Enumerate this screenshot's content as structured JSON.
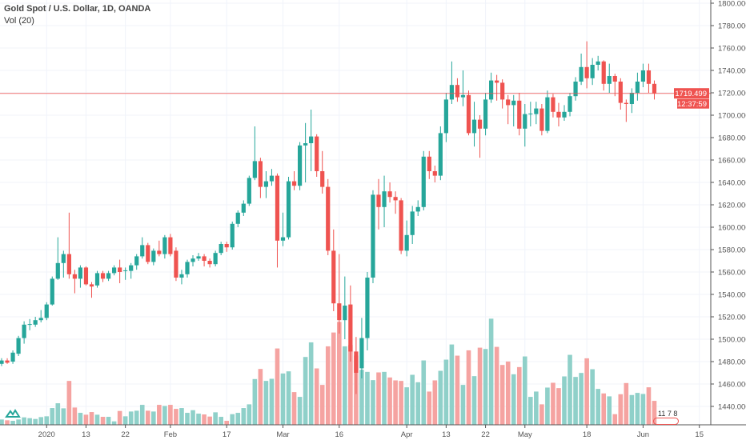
{
  "legend": {
    "title": "Gold Spot / U.S. Dollar, 1D, OANDA",
    "volume_label": "Vol (20)"
  },
  "price_label": {
    "value": "1719.499",
    "countdown": "12:37:59"
  },
  "events": {
    "labels": "11 7 8"
  },
  "colors": {
    "up": "#26a69a",
    "down": "#ef5350",
    "vol_up": "#8fd0c9",
    "vol_down": "#f5a3a1",
    "grid": "#f0f3fa",
    "price_line": "#ef5350"
  },
  "chart_data": {
    "type": "candlestick",
    "title": "Gold Spot / U.S. Dollar, 1D, OANDA",
    "ylim": [
      1430,
      1805
    ],
    "y_ticks": [
      "1800.000",
      "1780.000",
      "1760.000",
      "1740.000",
      "1720.000",
      "1700.000",
      "1680.000",
      "1660.000",
      "1640.000",
      "1620.000",
      "1600.000",
      "1580.000",
      "1560.000",
      "1540.000",
      "1520.000",
      "1500.000",
      "1480.000",
      "1460.000",
      "1440.000"
    ],
    "x_ticks": [
      {
        "label": "2020",
        "index": 8
      },
      {
        "label": "13",
        "index": 15
      },
      {
        "label": "22",
        "index": 22
      },
      {
        "label": "Feb",
        "index": 30
      },
      {
        "label": "17",
        "index": 40
      },
      {
        "label": "Mar",
        "index": 50
      },
      {
        "label": "16",
        "index": 60
      },
      {
        "label": "Apr",
        "index": 72
      },
      {
        "label": "13",
        "index": 79
      },
      {
        "label": "22",
        "index": 86
      },
      {
        "label": "May",
        "index": 93
      },
      {
        "label": "18",
        "index": 104
      },
      {
        "label": "Jun",
        "index": 114
      },
      {
        "label": "15",
        "index": 124
      }
    ],
    "ohlc_fields": [
      "open",
      "high",
      "low",
      "close"
    ],
    "ohlc": [
      [
        1478,
        1483,
        1476,
        1481
      ],
      [
        1481,
        1483,
        1478,
        1479
      ],
      [
        1480,
        1490,
        1478,
        1488
      ],
      [
        1487,
        1503,
        1485,
        1501
      ],
      [
        1501,
        1516,
        1496,
        1513
      ],
      [
        1513,
        1518,
        1508,
        1513.5
      ],
      [
        1513,
        1520,
        1511,
        1517
      ],
      [
        1517,
        1526,
        1515,
        1519
      ],
      [
        1519,
        1533,
        1517,
        1531
      ],
      [
        1531,
        1556,
        1530,
        1554
      ],
      [
        1554,
        1591,
        1553,
        1568
      ],
      [
        1568,
        1579,
        1555,
        1576
      ],
      [
        1576,
        1613,
        1554,
        1558
      ],
      [
        1558,
        1562,
        1541,
        1554
      ],
      [
        1554,
        1566,
        1546,
        1564
      ],
      [
        1564,
        1565,
        1548,
        1549
      ],
      [
        1549,
        1551,
        1537,
        1547
      ],
      [
        1548,
        1561,
        1546,
        1559
      ],
      [
        1559,
        1561,
        1551,
        1554
      ],
      [
        1554,
        1561,
        1552,
        1559
      ],
      [
        1559,
        1566,
        1557,
        1564
      ],
      [
        1564,
        1571,
        1550,
        1560
      ],
      [
        1561,
        1564,
        1553,
        1561.5
      ],
      [
        1561,
        1568,
        1554,
        1566
      ],
      [
        1566,
        1576,
        1562,
        1574
      ],
      [
        1574,
        1591,
        1572,
        1584
      ],
      [
        1584,
        1586,
        1567,
        1569
      ],
      [
        1569,
        1581,
        1566,
        1579
      ],
      [
        1579,
        1588,
        1574,
        1576
      ],
      [
        1576,
        1593,
        1572,
        1591
      ],
      [
        1591,
        1594,
        1574,
        1576
      ],
      [
        1579,
        1582,
        1552,
        1555
      ],
      [
        1555,
        1562,
        1549,
        1558
      ],
      [
        1558,
        1571,
        1555,
        1569
      ],
      [
        1569,
        1575,
        1565,
        1572
      ],
      [
        1572,
        1577,
        1570,
        1574
      ],
      [
        1574,
        1576,
        1565,
        1570
      ],
      [
        1570,
        1572,
        1564,
        1567
      ],
      [
        1567,
        1579,
        1565,
        1577
      ],
      [
        1577,
        1587,
        1575,
        1585
      ],
      [
        1585,
        1587,
        1578,
        1582
      ],
      [
        1582,
        1605,
        1580,
        1603
      ],
      [
        1603,
        1615,
        1600,
        1613
      ],
      [
        1613,
        1624,
        1610,
        1621
      ],
      [
        1621,
        1646,
        1619,
        1644
      ],
      [
        1644,
        1690,
        1642,
        1659
      ],
      [
        1659,
        1662,
        1626,
        1636
      ],
      [
        1636,
        1650,
        1626,
        1641
      ],
      [
        1641,
        1652,
        1637,
        1646
      ],
      [
        1646,
        1648,
        1564,
        1588
      ],
      [
        1588,
        1613,
        1583,
        1591
      ],
      [
        1591,
        1645,
        1589,
        1641
      ],
      [
        1641,
        1650,
        1633,
        1637
      ],
      [
        1637,
        1676,
        1633,
        1673
      ],
      [
        1673,
        1693,
        1640,
        1675
      ],
      [
        1675,
        1705,
        1650,
        1681
      ],
      [
        1681,
        1683,
        1645,
        1650
      ],
      [
        1650,
        1668,
        1630,
        1636
      ],
      [
        1636,
        1643,
        1575,
        1579
      ],
      [
        1579,
        1598,
        1525,
        1532
      ],
      [
        1532,
        1576,
        1505,
        1517
      ],
      [
        1517,
        1556,
        1500,
        1530
      ],
      [
        1531,
        1548,
        1480,
        1489
      ],
      [
        1489,
        1502,
        1451,
        1470
      ],
      [
        1474,
        1519,
        1465,
        1501
      ],
      [
        1501,
        1560,
        1490,
        1555
      ],
      [
        1555,
        1633,
        1550,
        1629
      ],
      [
        1629,
        1643,
        1598,
        1618
      ],
      [
        1618,
        1646,
        1600,
        1632
      ],
      [
        1632,
        1640,
        1622,
        1627
      ],
      [
        1627,
        1632,
        1612,
        1624
      ],
      [
        1624,
        1626,
        1576,
        1579
      ],
      [
        1579,
        1606,
        1574,
        1593
      ],
      [
        1593,
        1619,
        1585,
        1614
      ],
      [
        1614,
        1624,
        1610,
        1618
      ],
      [
        1618,
        1668,
        1615,
        1663
      ],
      [
        1663,
        1668,
        1643,
        1650
      ],
      [
        1650,
        1655,
        1640,
        1646
      ],
      [
        1646,
        1690,
        1642,
        1684
      ],
      [
        1684,
        1720,
        1676,
        1714
      ],
      [
        1714,
        1748,
        1710,
        1727
      ],
      [
        1727,
        1733,
        1712,
        1716
      ],
      [
        1716,
        1740,
        1708,
        1718
      ],
      [
        1718,
        1722,
        1682,
        1684
      ],
      [
        1684,
        1712,
        1672,
        1696
      ],
      [
        1696,
        1700,
        1662,
        1688
      ],
      [
        1688,
        1720,
        1682,
        1714
      ],
      [
        1714,
        1738,
        1711,
        1731
      ],
      [
        1731,
        1736,
        1713,
        1729
      ],
      [
        1729,
        1732,
        1706,
        1714
      ],
      [
        1714,
        1718,
        1692,
        1709
      ],
      [
        1709,
        1718,
        1690,
        1713
      ],
      [
        1713,
        1720,
        1682,
        1688
      ],
      [
        1688,
        1710,
        1672,
        1701
      ],
      [
        1701,
        1712,
        1690,
        1701.5
      ],
      [
        1701,
        1712,
        1692,
        1706
      ],
      [
        1706,
        1710,
        1682,
        1686
      ],
      [
        1686,
        1722,
        1684,
        1716
      ],
      [
        1716,
        1719,
        1698,
        1703
      ],
      [
        1703,
        1711,
        1690,
        1698
      ],
      [
        1698,
        1709,
        1695,
        1703
      ],
      [
        1703,
        1720,
        1699,
        1717
      ],
      [
        1717,
        1734,
        1713,
        1730
      ],
      [
        1730,
        1755,
        1727,
        1743
      ],
      [
        1743,
        1766,
        1724,
        1733
      ],
      [
        1733,
        1751,
        1727,
        1745
      ],
      [
        1745,
        1753,
        1740,
        1748
      ],
      [
        1748,
        1749,
        1722,
        1728
      ],
      [
        1728,
        1746,
        1720,
        1735
      ],
      [
        1735,
        1737,
        1717,
        1730
      ],
      [
        1730,
        1733,
        1705,
        1711
      ],
      [
        1711,
        1714,
        1694,
        1710
      ],
      [
        1710,
        1724,
        1702,
        1720
      ],
      [
        1720,
        1738,
        1713,
        1730
      ],
      [
        1730,
        1746,
        1725,
        1740
      ],
      [
        1740,
        1746,
        1720,
        1728
      ],
      [
        1728,
        1731,
        1714,
        1719.499
      ]
    ],
    "volume": [
      20,
      17,
      15,
      20,
      28,
      25,
      22,
      29,
      32,
      63,
      81,
      62,
      165,
      65,
      45,
      38,
      48,
      38,
      30,
      30,
      13,
      52,
      32,
      50,
      53,
      75,
      53,
      50,
      75,
      71,
      75,
      60,
      63,
      45,
      55,
      42,
      39,
      31,
      47,
      30,
      15,
      40,
      45,
      63,
      77,
      172,
      210,
      165,
      173,
      287,
      193,
      201,
      123,
      105,
      255,
      310,
      212,
      150,
      295,
      347,
      387,
      295,
      300,
      260,
      207,
      199,
      168,
      197,
      199,
      178,
      167,
      165,
      141,
      188,
      160,
      242,
      125,
      167,
      203,
      245,
      302,
      260,
      150,
      280,
      183,
      290,
      285,
      399,
      293,
      225,
      238,
      190,
      217,
      257,
      105,
      125,
      77,
      140,
      158,
      138,
      182,
      263,
      180,
      195,
      250,
      209,
      135,
      118,
      107,
      40,
      115,
      157,
      112,
      120,
      116,
      141,
      90
    ],
    "volume_max": 400,
    "last_price": 1719.499,
    "grid": true
  }
}
